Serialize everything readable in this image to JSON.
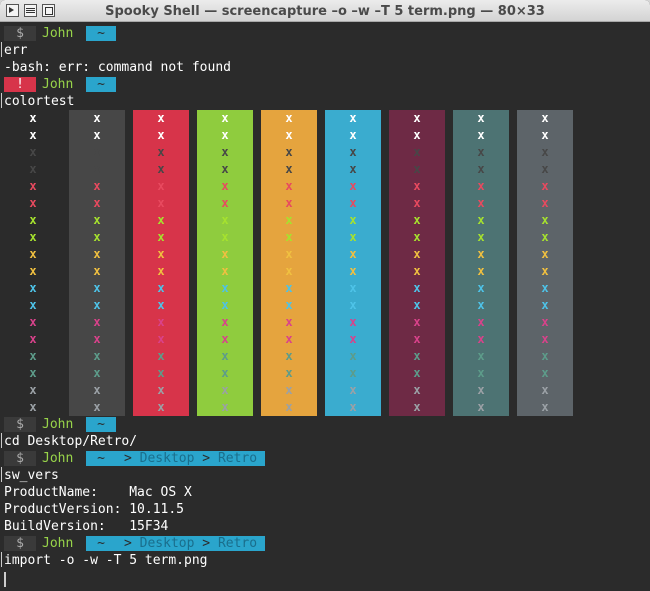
{
  "window": {
    "title": "Spooky Shell — screencapture –o –w –T 5 term.png — 80×33"
  },
  "prompt": {
    "status_symbol": "$",
    "error_symbol": "!",
    "user": "John",
    "home_symbol": "~",
    "path_separator": ">",
    "desktop_dir": "Desktop",
    "retro_dir": "Retro"
  },
  "lines": {
    "cmd_err": "err",
    "err_output": "-bash: err: command not found",
    "cmd_colortest": "colortest",
    "cmd_cd": "cd Desktop/Retro/",
    "cmd_sw_vers": "sw_vers",
    "sw_product_name": "ProductName:    Mac OS X",
    "sw_product_version": "ProductVersion: 10.11.5",
    "sw_build_version": "BuildVersion:   15F34",
    "cmd_import": "import -o -w -T 5 term.png"
  },
  "colortest": {
    "glyph": "x",
    "backgrounds": [
      "#2b2b2b",
      "#474747",
      "#d7344a",
      "#8fcc3e",
      "#e5a43e",
      "#3aaccf",
      "#6e2a45",
      "#4d7373",
      "#5d6469"
    ],
    "foregrounds": [
      "#ffffff",
      "#ffffff",
      "#474747",
      "#474747",
      "#e84a5f",
      "#e84a5f",
      "#a6e22e",
      "#a6e22e",
      "#f0c040",
      "#f0c040",
      "#4ec3e8",
      "#4ec3e8",
      "#d9428b",
      "#d9428b",
      "#5d9c8a",
      "#5d9c8a",
      "#9ba1a6",
      "#9ba1a6"
    ]
  },
  "colors": {
    "accent_green": "#98d44a",
    "accent_cyan": "#2aa5cc",
    "error_red": "#d7344a",
    "terminal_bg": "#2b2b2b"
  }
}
